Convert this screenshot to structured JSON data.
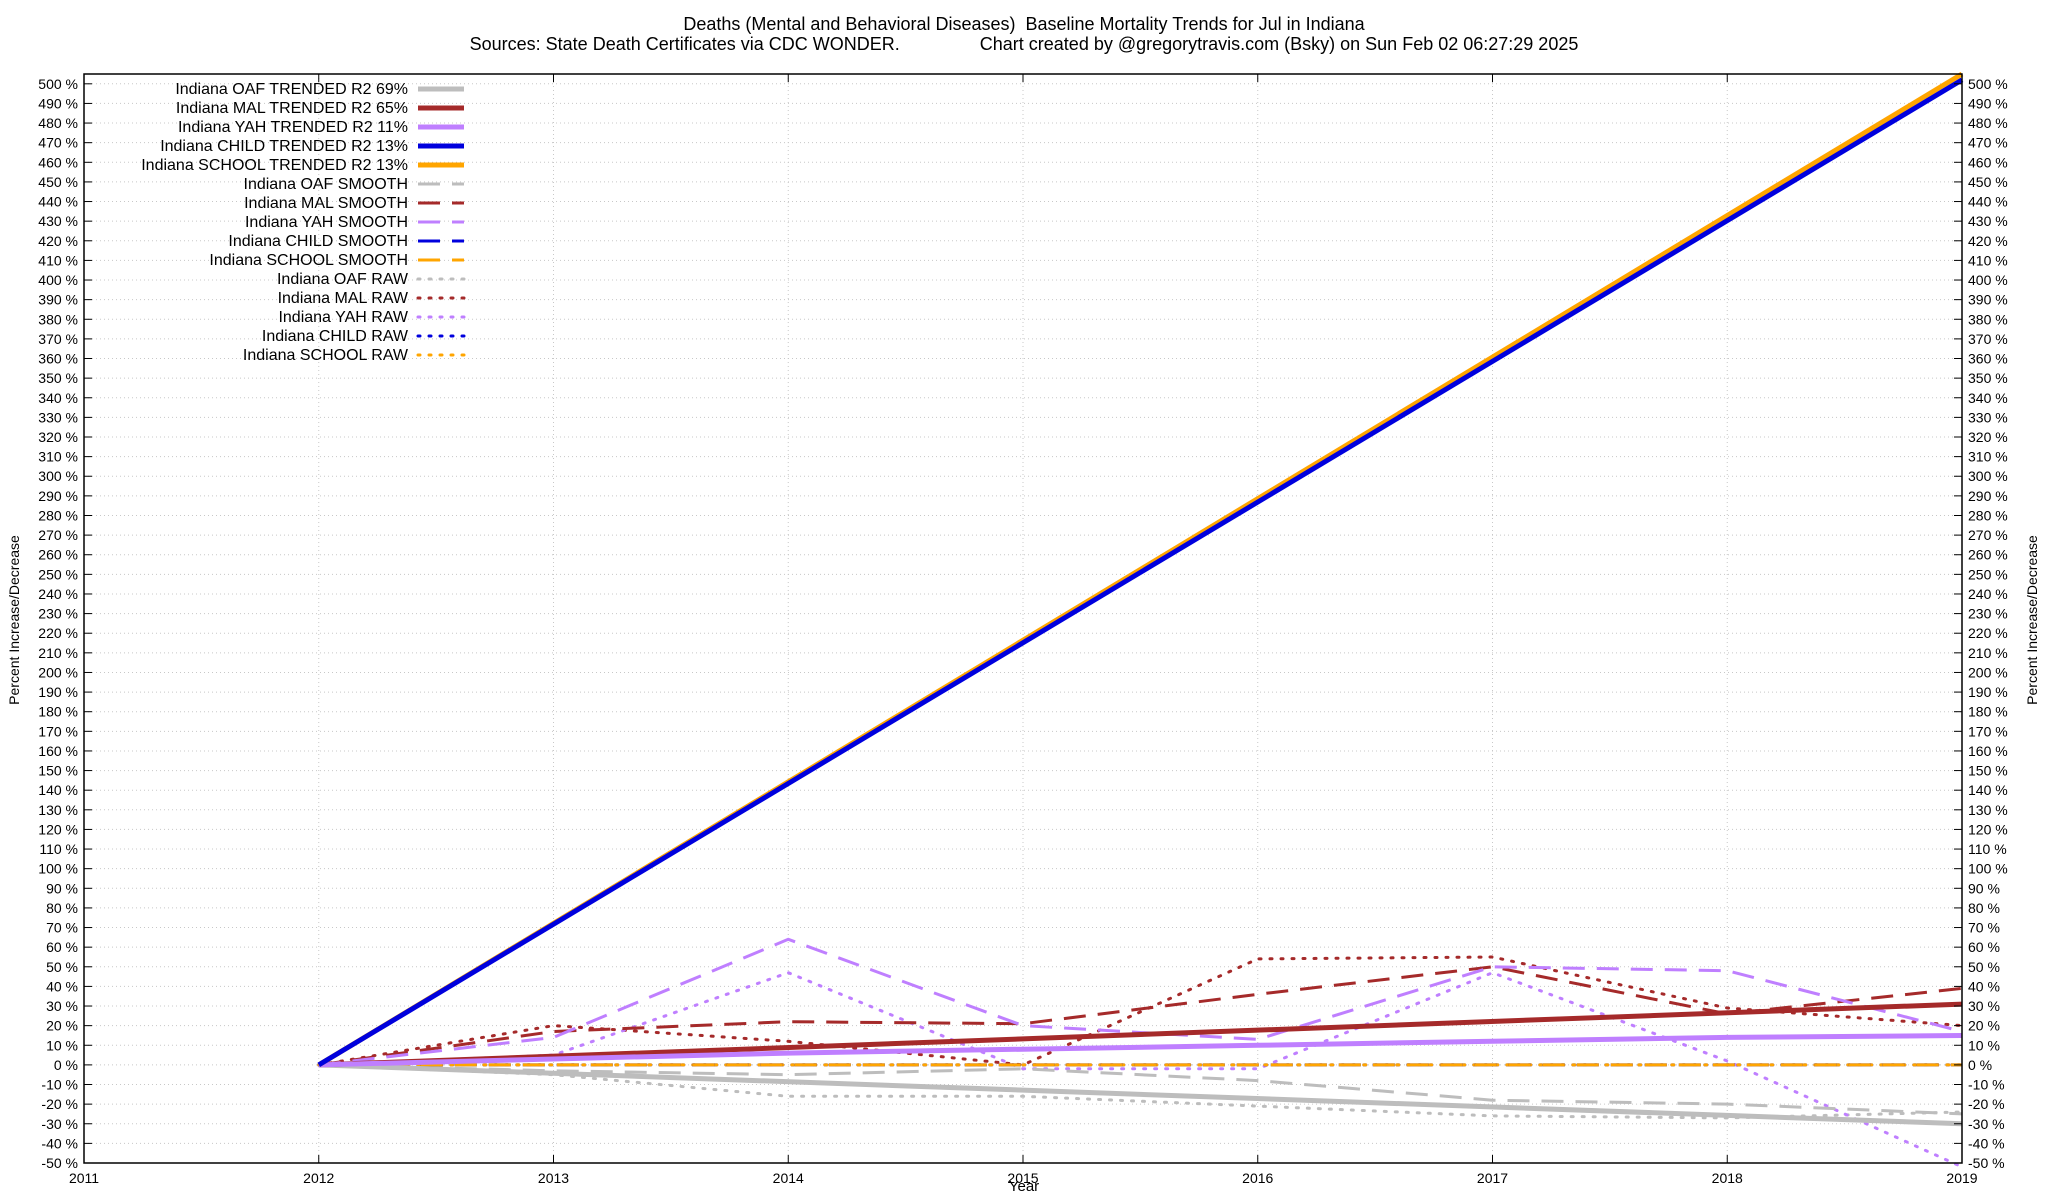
{
  "chart_data": {
    "type": "line",
    "title_line1": "Deaths (Mental and Behavioral Diseases)  Baseline Mortality Trends for Jul in Indiana",
    "title_line2": "Sources: State Death Certificates via CDC WONDER.                Chart created by @gregorytravis.com (Bsky) on Sun Feb 02 06:27:29 2025",
    "xlabel": "Year",
    "ylabel": "Percent Increase/Decrease",
    "y2label": "Percent Increase/Decrease",
    "xlim": [
      2011,
      2019
    ],
    "ylim": [
      -50,
      505
    ],
    "x_ticks": [
      2011,
      2012,
      2013,
      2014,
      2015,
      2016,
      2017,
      2018,
      2019
    ],
    "y_tick_step": 10,
    "y_tick_suffix": " %",
    "grid": true,
    "legend_position": "top-left",
    "series": [
      {
        "name": "Indiana OAF TRENDED R2  69%",
        "style": "trend",
        "color": "#bdbdbd",
        "x": [
          2012,
          2019
        ],
        "y": [
          0,
          -30
        ]
      },
      {
        "name": "Indiana MAL TRENDED R2  65%",
        "style": "trend",
        "color": "#a52a2a",
        "x": [
          2012,
          2019
        ],
        "y": [
          0,
          31
        ]
      },
      {
        "name": "Indiana YAH TRENDED R2  11%",
        "style": "trend",
        "color": "#bf7fff",
        "x": [
          2012,
          2013,
          2014,
          2015,
          2016,
          2017,
          2018,
          2019
        ],
        "y": [
          0,
          3,
          6,
          8,
          10,
          12,
          14,
          15
        ]
      },
      {
        "name": "Indiana CHILD TRENDED R2  13%",
        "style": "trend",
        "color": "#0000dd",
        "x": [
          2012,
          2019
        ],
        "y": [
          0,
          502
        ]
      },
      {
        "name": "Indiana SCHOOL TRENDED R2  13%",
        "style": "trend",
        "color": "#ffa500",
        "x": [
          2012,
          2019
        ],
        "y": [
          0,
          505
        ]
      },
      {
        "name": "Indiana OAF SMOOTH",
        "style": "smooth",
        "color": "#bdbdbd",
        "x": [
          2012,
          2013,
          2014,
          2015,
          2016,
          2017,
          2018,
          2019
        ],
        "y": [
          0,
          -3,
          -5,
          -2,
          -8,
          -18,
          -20,
          -25
        ]
      },
      {
        "name": "Indiana MAL SMOOTH",
        "style": "smooth",
        "color": "#a52a2a",
        "x": [
          2012,
          2013,
          2014,
          2015,
          2016,
          2017,
          2018,
          2019
        ],
        "y": [
          0,
          17,
          22,
          21,
          36,
          50,
          26,
          39
        ]
      },
      {
        "name": "Indiana YAH SMOOTH",
        "style": "smooth",
        "color": "#bf7fff",
        "x": [
          2012,
          2013,
          2014,
          2015,
          2016,
          2017,
          2018,
          2019
        ],
        "y": [
          0,
          14,
          64,
          20,
          13,
          50,
          48,
          17
        ]
      },
      {
        "name": "Indiana CHILD SMOOTH",
        "style": "smooth",
        "color": "#0000dd",
        "x": [
          2012,
          2019
        ],
        "y": [
          0,
          0
        ]
      },
      {
        "name": "Indiana SCHOOL SMOOTH",
        "style": "smooth",
        "color": "#ffa500",
        "x": [
          2012,
          2019
        ],
        "y": [
          0,
          0
        ]
      },
      {
        "name": "Indiana OAF RAW",
        "style": "raw",
        "color": "#bdbdbd",
        "x": [
          2012,
          2013,
          2014,
          2015,
          2016,
          2017,
          2018,
          2019
        ],
        "y": [
          0,
          -5,
          -16,
          -16,
          -21,
          -26,
          -27,
          -24
        ]
      },
      {
        "name": "Indiana MAL RAW",
        "style": "raw",
        "color": "#a52a2a",
        "x": [
          2012,
          2013,
          2014,
          2015,
          2016,
          2017,
          2018,
          2019
        ],
        "y": [
          0,
          20,
          12,
          0,
          54,
          55,
          29,
          20
        ]
      },
      {
        "name": "Indiana YAH RAW",
        "style": "raw",
        "color": "#bf7fff",
        "x": [
          2012,
          2013,
          2014,
          2015,
          2016,
          2017,
          2018,
          2019
        ],
        "y": [
          0,
          5,
          47,
          -2,
          -2,
          47,
          2,
          -52
        ]
      },
      {
        "name": "Indiana CHILD RAW",
        "style": "raw",
        "color": "#0000dd",
        "x": [
          2012,
          2019
        ],
        "y": [
          0,
          0
        ]
      },
      {
        "name": "Indiana SCHOOL RAW",
        "style": "raw",
        "color": "#ffa500",
        "x": [
          2012,
          2019
        ],
        "y": [
          0,
          0
        ]
      }
    ]
  }
}
